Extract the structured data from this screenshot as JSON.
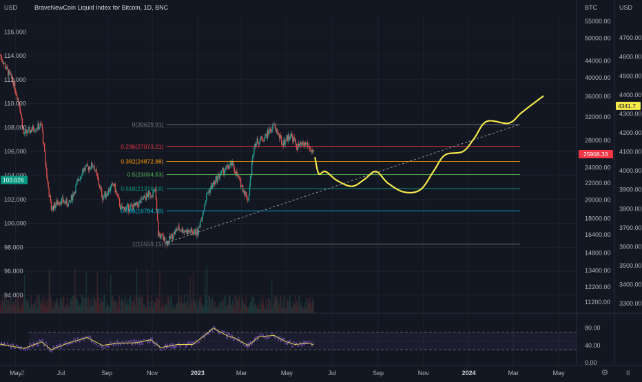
{
  "header": {
    "left_unit": "USD",
    "title": "BraveNewCoin Liquid Index for Bitcoin, 1D, BNC",
    "btc_unit": "BTC",
    "usd_unit": "USD"
  },
  "footer": {
    "left_icon": "Z",
    "right_icon": "B",
    "gear": "gear-icon"
  },
  "chart_data": {
    "type": "line",
    "series_name": "",
    "x_range": [
      "2022-04-10",
      "2024-05-25"
    ],
    "x_ticks": [
      {
        "label": "May",
        "date": "2022-05-01"
      },
      {
        "label": "Jul",
        "date": "2022-07-01"
      },
      {
        "label": "Sep",
        "date": "2022-09-01"
      },
      {
        "label": "Nov",
        "date": "2022-11-01"
      },
      {
        "label": "2023",
        "date": "2023-01-01",
        "bold": true
      },
      {
        "label": "Mar",
        "date": "2023-03-01"
      },
      {
        "label": "May",
        "date": "2023-05-01"
      },
      {
        "label": "Jul",
        "date": "2023-07-01"
      },
      {
        "label": "Sep",
        "date": "2023-09-01"
      },
      {
        "label": "Nov",
        "date": "2023-11-01"
      },
      {
        "label": "2024",
        "date": "2024-01-01",
        "bold": true
      },
      {
        "label": "Mar",
        "date": "2024-03-01"
      },
      {
        "label": "May",
        "date": "2024-05-01"
      }
    ],
    "left_axis": {
      "range": [
        92.5,
        117.4
      ],
      "ticks": [
        "116.000",
        "114.000",
        "112.000",
        "110.000",
        "108.000",
        "106.000",
        "104.000",
        "102.000",
        "100.000",
        "98.000",
        "96.000",
        "94.000"
      ],
      "current": "103.626"
    },
    "btc_axis": {
      "range": [
        10520,
        57000
      ],
      "log": true,
      "ticks": [
        "55000.00",
        "50000.00",
        "44000.00",
        "40000.00",
        "36000.00",
        "32000.00",
        "28000.00",
        "24000.00",
        "22000.00",
        "20000.00",
        "18000.00",
        "16400.00",
        "14800.00",
        "13400.00",
        "12200.00",
        "11200.00"
      ],
      "current": "25908.33"
    },
    "usd_axis": {
      "range": [
        3250,
        4820
      ],
      "ticks": [
        "4700.00",
        "4600.00",
        "4500.00",
        "4400.00",
        "4300.00",
        "4200.00",
        "4100.00",
        "4000.00",
        "3900.00",
        "3800.00",
        "3700.00",
        "3600.00",
        "3500.00",
        "3400.00",
        "3300.00"
      ],
      "current": "4341.7"
    },
    "fib_levels": [
      {
        "label": "0(30629.91)",
        "price": 30629.91,
        "color": "#787b86"
      },
      {
        "label": "0.236(27073.21)",
        "price": 27073.21,
        "color": "#f23645"
      },
      {
        "label": "0.382(24872.88)",
        "price": 24872.88,
        "color": "#ff9800"
      },
      {
        "label": "0.5(23094.53)",
        "price": 23094.53,
        "color": "#4caf50"
      },
      {
        "label": "0.618(21316.18)",
        "price": 21316.18,
        "color": "#089981"
      },
      {
        "label": "0.786(18784.30)",
        "price": 18784.3,
        "color": "#00bcd4"
      },
      {
        "label": "1(15559.15)",
        "price": 15559.15,
        "color": "#787b86"
      }
    ],
    "fib_range": [
      "2022-11-20",
      "2024-03-10"
    ],
    "trendline": {
      "from": {
        "date": "2022-11-21",
        "price": 15700
      },
      "to": {
        "date": "2024-03-10",
        "price": 30700
      }
    },
    "price_path": [
      {
        "d": "2022-04-10",
        "p": 45500
      },
      {
        "d": "2022-04-20",
        "p": 41500
      },
      {
        "d": "2022-04-28",
        "p": 39000
      },
      {
        "d": "2022-05-06",
        "p": 34500
      },
      {
        "d": "2022-05-12",
        "p": 29000
      },
      {
        "d": "2022-05-25",
        "p": 30000
      },
      {
        "d": "2022-06-05",
        "p": 30500
      },
      {
        "d": "2022-06-13",
        "p": 22000
      },
      {
        "d": "2022-06-18",
        "p": 19000
      },
      {
        "d": "2022-06-30",
        "p": 20000
      },
      {
        "d": "2022-07-12",
        "p": 19500
      },
      {
        "d": "2022-07-30",
        "p": 23700
      },
      {
        "d": "2022-08-14",
        "p": 24400
      },
      {
        "d": "2022-08-26",
        "p": 20300
      },
      {
        "d": "2022-09-10",
        "p": 21800
      },
      {
        "d": "2022-09-20",
        "p": 19000
      },
      {
        "d": "2022-10-10",
        "p": 19300
      },
      {
        "d": "2022-10-25",
        "p": 20500
      },
      {
        "d": "2022-11-05",
        "p": 21000
      },
      {
        "d": "2022-11-09",
        "p": 16500
      },
      {
        "d": "2022-11-21",
        "p": 15700
      },
      {
        "d": "2022-12-05",
        "p": 17000
      },
      {
        "d": "2022-12-20",
        "p": 16700
      },
      {
        "d": "2023-01-01",
        "p": 16600
      },
      {
        "d": "2023-01-14",
        "p": 20800
      },
      {
        "d": "2023-01-31",
        "p": 23100
      },
      {
        "d": "2023-02-16",
        "p": 24500
      },
      {
        "d": "2023-03-10",
        "p": 20000
      },
      {
        "d": "2023-03-18",
        "p": 27500
      },
      {
        "d": "2023-04-01",
        "p": 28500
      },
      {
        "d": "2023-04-14",
        "p": 30500
      },
      {
        "d": "2023-04-25",
        "p": 27500
      },
      {
        "d": "2023-05-06",
        "p": 29000
      },
      {
        "d": "2023-05-15",
        "p": 27000
      },
      {
        "d": "2023-05-28",
        "p": 27500
      },
      {
        "d": "2023-06-06",
        "p": 25800
      }
    ],
    "projection": [
      {
        "d": "2023-06-08",
        "p": 25400
      },
      {
        "d": "2023-06-13",
        "p": 23200
      },
      {
        "d": "2023-06-22",
        "p": 23500
      },
      {
        "d": "2023-07-08",
        "p": 22300
      },
      {
        "d": "2023-07-28",
        "p": 21600
      },
      {
        "d": "2023-08-14",
        "p": 22500
      },
      {
        "d": "2023-08-29",
        "p": 23500
      },
      {
        "d": "2023-09-14",
        "p": 22000
      },
      {
        "d": "2023-10-06",
        "p": 20900
      },
      {
        "d": "2023-10-28",
        "p": 21200
      },
      {
        "d": "2023-11-15",
        "p": 23600
      },
      {
        "d": "2023-11-30",
        "p": 25800
      },
      {
        "d": "2023-12-24",
        "p": 26300
      },
      {
        "d": "2024-01-08",
        "p": 28300
      },
      {
        "d": "2024-01-25",
        "p": 31200
      },
      {
        "d": "2024-02-24",
        "p": 30900
      },
      {
        "d": "2024-03-12",
        "p": 32800
      },
      {
        "d": "2024-04-10",
        "p": 36000
      }
    ],
    "oscillator": {
      "range": [
        0,
        100
      ],
      "ticks": [
        "80.00",
        "40.00",
        "0.00"
      ],
      "upper_band": 70,
      "lower_band": 30,
      "values": [
        {
          "d": "2022-04-10",
          "v": 43
        },
        {
          "d": "2022-05-12",
          "v": 33
        },
        {
          "d": "2022-06-05",
          "v": 48
        },
        {
          "d": "2022-06-18",
          "v": 30
        },
        {
          "d": "2022-07-10",
          "v": 45
        },
        {
          "d": "2022-08-05",
          "v": 58
        },
        {
          "d": "2022-08-26",
          "v": 40
        },
        {
          "d": "2022-09-15",
          "v": 45
        },
        {
          "d": "2022-10-10",
          "v": 46
        },
        {
          "d": "2022-10-30",
          "v": 53
        },
        {
          "d": "2022-11-12",
          "v": 35
        },
        {
          "d": "2022-12-05",
          "v": 42
        },
        {
          "d": "2022-12-25",
          "v": 42
        },
        {
          "d": "2023-01-10",
          "v": 62
        },
        {
          "d": "2023-01-22",
          "v": 80
        },
        {
          "d": "2023-02-10",
          "v": 62
        },
        {
          "d": "2023-02-20",
          "v": 57
        },
        {
          "d": "2023-03-10",
          "v": 40
        },
        {
          "d": "2023-03-25",
          "v": 60
        },
        {
          "d": "2023-04-14",
          "v": 63
        },
        {
          "d": "2023-04-28",
          "v": 50
        },
        {
          "d": "2023-05-12",
          "v": 42
        },
        {
          "d": "2023-05-28",
          "v": 45
        },
        {
          "d": "2023-06-06",
          "v": 42
        }
      ]
    }
  }
}
